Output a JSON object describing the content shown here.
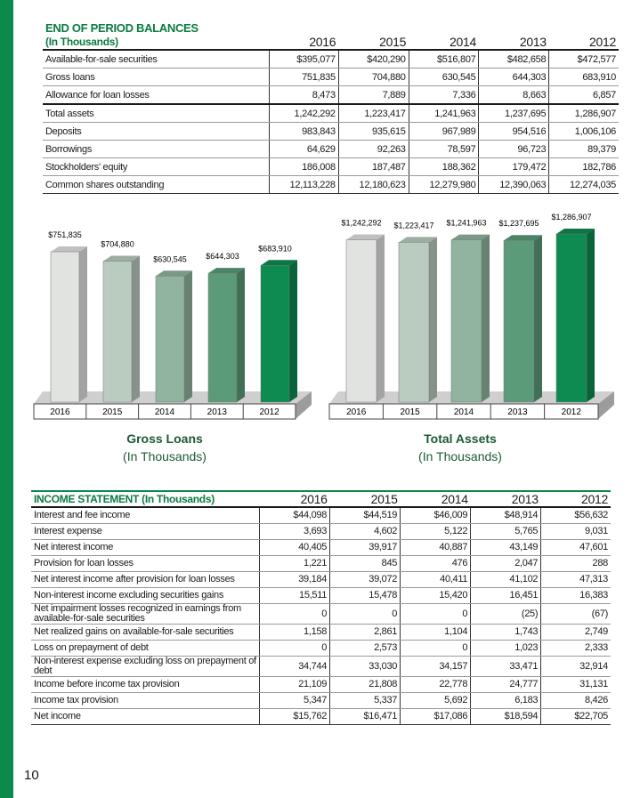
{
  "balances": {
    "title": "END OF PERIOD BALANCES",
    "subtitle": "(In Thousands)",
    "years": [
      "2016",
      "2015",
      "2014",
      "2013",
      "2012"
    ],
    "rows": [
      {
        "label": "Available-for-sale securities",
        "values": [
          "$395,077",
          "$420,290",
          "$516,807",
          "$482,658",
          "$472,577"
        ]
      },
      {
        "label": "Gross loans",
        "values": [
          "751,835",
          "704,880",
          "630,545",
          "644,303",
          "683,910"
        ]
      },
      {
        "label": "Allowance for loan losses",
        "values": [
          "8,473",
          "7,889",
          "7,336",
          "8,663",
          "6,857"
        ]
      },
      {
        "label": "Total assets",
        "values": [
          "1,242,292",
          "1,223,417",
          "1,241,963",
          "1,237,695",
          "1,286,907"
        ]
      },
      {
        "label": "Deposits",
        "values": [
          "983,843",
          "935,615",
          "967,989",
          "954,516",
          "1,006,106"
        ]
      },
      {
        "label": "Borrowings",
        "values": [
          "64,629",
          "92,263",
          "78,597",
          "96,723",
          "89,379"
        ]
      },
      {
        "label": "Stockholders' equity",
        "values": [
          "186,008",
          "187,487",
          "188,362",
          "179,472",
          "182,786"
        ]
      },
      {
        "label": "Common shares outstanding",
        "values": [
          "12,113,228",
          "12,180,623",
          "12,279,980",
          "12,390,063",
          "12,274,035"
        ]
      }
    ]
  },
  "chart_data": [
    {
      "type": "bar",
      "title": "Gross Loans",
      "subtitle": "(In Thousands)",
      "categories": [
        "2016",
        "2015",
        "2014",
        "2013",
        "2012"
      ],
      "values": [
        751835,
        704880,
        630545,
        644303,
        683910
      ],
      "value_labels": [
        "$751,835",
        "$704,880",
        "$630,545",
        "$644,303",
        "$683,910"
      ],
      "colors": [
        "#e1e3e1",
        "#bacbbf",
        "#90b49e",
        "#5b9b79",
        "#0e8b51"
      ]
    },
    {
      "type": "bar",
      "title": "Total Assets",
      "subtitle": "(In Thousands)",
      "categories": [
        "2016",
        "2015",
        "2014",
        "2013",
        "2012"
      ],
      "values": [
        1242292,
        1223417,
        1241963,
        1237695,
        1286907
      ],
      "value_labels": [
        "$1,242,292",
        "$1,223,417",
        "$1,241,963",
        "$1,237,695",
        "$1,286,907"
      ],
      "colors": [
        "#e1e3e1",
        "#bacbbf",
        "#90b49e",
        "#5b9b79",
        "#0e8b51"
      ]
    }
  ],
  "income": {
    "title": "INCOME STATEMENT (In Thousands)",
    "years": [
      "2016",
      "2015",
      "2014",
      "2013",
      "2012"
    ],
    "rows": [
      {
        "label": "Interest and fee income",
        "values": [
          "$44,098",
          "$44,519",
          "$46,009",
          "$48,914",
          "$56,632"
        ]
      },
      {
        "label": "Interest expense",
        "values": [
          "3,693",
          "4,602",
          "5,122",
          "5,765",
          "9,031"
        ]
      },
      {
        "label": "Net interest income",
        "values": [
          "40,405",
          "39,917",
          "40,887",
          "43,149",
          "47,601"
        ]
      },
      {
        "label": "Provision for loan losses",
        "values": [
          "1,221",
          "845",
          "476",
          "2,047",
          "288"
        ]
      },
      {
        "label": "Net interest income after provision for loan losses",
        "values": [
          "39,184",
          "39,072",
          "40,411",
          "41,102",
          "47,313"
        ]
      },
      {
        "label": "Non-interest income excluding securities gains",
        "values": [
          "15,511",
          "15,478",
          "15,420",
          "16,451",
          "16,383"
        ]
      },
      {
        "label": "Net impairment losses recognized in earnings from available-for-sale securities",
        "values": [
          "0",
          "0",
          "0",
          "(25)",
          "(67)"
        ]
      },
      {
        "label": "Net realized gains on available-for-sale securities",
        "values": [
          "1,158",
          "2,861",
          "1,104",
          "1,743",
          "2,749"
        ]
      },
      {
        "label": "Loss on prepayment of debt",
        "values": [
          "0",
          "2,573",
          "0",
          "1,023",
          "2,333"
        ]
      },
      {
        "label": "Non-interest expense excluding loss on prepayment of debt",
        "values": [
          "34,744",
          "33,030",
          "34,157",
          "33,471",
          "32,914"
        ]
      },
      {
        "label": "Income before income tax provision",
        "values": [
          "21,109",
          "21,808",
          "22,778",
          "24,777",
          "31,131"
        ]
      },
      {
        "label": "Income tax provision",
        "values": [
          "5,347",
          "5,337",
          "5,692",
          "6,183",
          "8,426"
        ]
      },
      {
        "label": "Net income",
        "values": [
          "$15,762",
          "$16,471",
          "$17,086",
          "$18,594",
          "$22,705"
        ]
      }
    ]
  },
  "page_number": "10"
}
